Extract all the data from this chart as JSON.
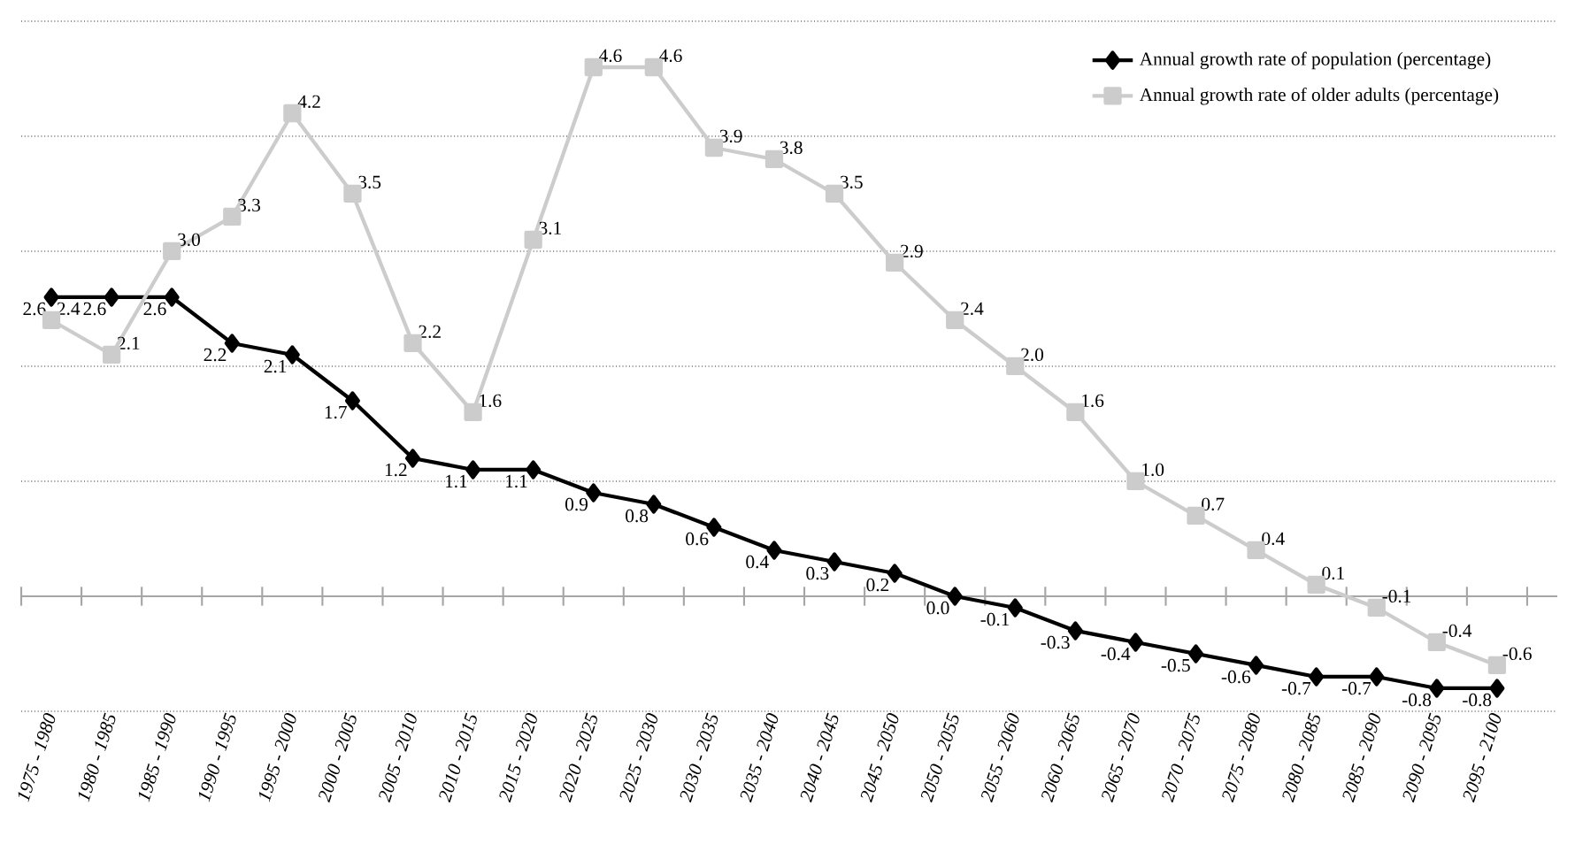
{
  "chart_data": {
    "type": "line",
    "categories": [
      "1975 - 1980",
      "1980 - 1985",
      "1985 - 1990",
      "1990 - 1995",
      "1995 - 2000",
      "2000 - 2005",
      "2005 - 2010",
      "2010 - 2015",
      "2015 - 2020",
      "2020 - 2025",
      "2025 - 2030",
      "2030 - 2035",
      "2035 - 2040",
      "2040 - 2045",
      "2045 - 2050",
      "2050 - 2055",
      "2055 - 2060",
      "2060 - 2065",
      "2065 - 2070",
      "2070 - 2075",
      "2075 - 2080",
      "2080 - 2085",
      "2085 - 2090",
      "2090 - 2095",
      "2095 - 2100"
    ],
    "series": [
      {
        "name": "Annual growth rate of population (percentage)",
        "color": "#000000",
        "marker": "diamond",
        "values": [
          2.6,
          2.6,
          2.6,
          2.2,
          2.1,
          1.7,
          1.2,
          1.1,
          1.1,
          0.9,
          0.8,
          0.6,
          0.4,
          0.3,
          0.2,
          0.0,
          -0.1,
          -0.3,
          -0.4,
          -0.5,
          -0.6,
          -0.7,
          -0.7,
          -0.8,
          -0.8
        ],
        "value_labels": [
          "2.6",
          "2.6",
          "2.6",
          "2.2",
          "2.1",
          "1.7",
          "1.2",
          "1.1",
          "1.1",
          "0.9",
          "0.8",
          "0.6",
          "0.4",
          "0.3",
          "0.2",
          "0.0",
          "-0.1",
          "-0.3",
          "-0.4",
          "-0.5",
          "-0.6",
          "-0.7",
          "-0.7",
          "-0.8",
          "-0.8"
        ]
      },
      {
        "name": "Annual growth rate of older adults (percentage)",
        "color": "#cccccc",
        "marker": "square",
        "values": [
          2.4,
          2.1,
          3.0,
          3.3,
          4.2,
          3.5,
          2.2,
          1.6,
          3.1,
          4.6,
          4.6,
          3.9,
          3.8,
          3.5,
          2.9,
          2.4,
          2.0,
          1.6,
          1.0,
          0.7,
          0.4,
          0.1,
          -0.1,
          -0.4,
          -0.6
        ],
        "value_labels": [
          "2.4",
          "2.1",
          "3.0",
          "3.3",
          "4.2",
          "3.5",
          "2.2",
          "1.6",
          "3.1",
          "4.6",
          "4.6",
          "3.9",
          "3.8",
          "3.5",
          "2.9",
          "2.4",
          "2.0",
          "1.6",
          "1.0",
          "0.7",
          "0.4",
          "0.1",
          "-0.1",
          "-0.4",
          "-0.6"
        ]
      }
    ],
    "ylim": [
      -1,
      5
    ],
    "yticks": [
      {
        "value": -1,
        "label": null
      },
      {
        "value": 0,
        "label": null
      },
      {
        "value": 1,
        "label": null
      },
      {
        "value": 2,
        "label": null
      },
      {
        "value": 3,
        "label": null
      },
      {
        "value": 4,
        "label": null
      },
      {
        "value": 5,
        "label": null
      }
    ],
    "tick_labels": "x",
    "grid": "y",
    "legend": "top right",
    "line_style": "solid"
  }
}
